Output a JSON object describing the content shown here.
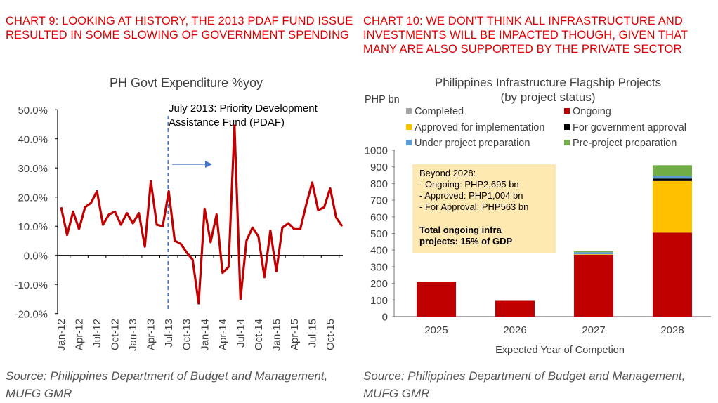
{
  "left": {
    "heading": "CHART 9: LOOKING AT HISTORY, THE 2013 PDAF FUND ISSUE RESULTED IN SOME SLOWING OF GOVERNMENT SPENDING",
    "source": "Source: Philippines Department of Budget and Management, MUFG GMR"
  },
  "right": {
    "heading": "CHART 10: WE DON’T THINK ALL INFRASTRUCTURE AND INVESTMENTS WILL BE IMPACTED THOUGH, GIVEN THAT MANY ARE ALSO SUPPORTED BY THE PRIVATE SECTOR",
    "source": "Source: Philippines Department of Budget and Management, MUFG GMR"
  },
  "chart_data": [
    {
      "type": "line",
      "title": "PH Govt Expenditure %yoy",
      "ylim": [
        -20,
        50
      ],
      "yticks": [
        "50.0%",
        "40.0%",
        "30.0%",
        "20.0%",
        "10.0%",
        "0.0%",
        "-10.0%",
        "-20.0%"
      ],
      "ytick_values": [
        50,
        40,
        30,
        20,
        10,
        0,
        -10,
        -20
      ],
      "xtick_labels": [
        "Jan-12",
        "Apr-12",
        "Jul-12",
        "Oct-12",
        "Jan-13",
        "Apr-13",
        "Jul-13",
        "Oct-13",
        "Jan-14",
        "Apr-14",
        "Jul-14",
        "Oct-14",
        "Jan-15",
        "Apr-15",
        "Jul-15",
        "Oct-15"
      ],
      "annotation": [
        "July 2013: Priority Development",
        "Assistance Fund (PDAF)"
      ],
      "event_index": 18,
      "series": [
        {
          "name": "PH Govt Expenditure %yoy",
          "color": "#c00000",
          "values": [
            16.5,
            7,
            15,
            9,
            16.5,
            18,
            22,
            10.5,
            14,
            15,
            10.5,
            14.5,
            11,
            14.5,
            3,
            25.5,
            10.5,
            10,
            22,
            5,
            4,
            1,
            -1.5,
            -16.5,
            16,
            4.5,
            14,
            -6,
            -4,
            44.5,
            -15,
            5,
            9.5,
            6.5,
            -7.5,
            8.5,
            -5.5,
            9.5,
            11,
            9,
            9,
            17.5,
            25,
            15.5,
            16.5,
            23,
            13,
            10
          ]
        }
      ]
    },
    {
      "type": "bar",
      "stacked": true,
      "title": "Philippines Infrastructure Flagship Projects",
      "subtitle": "(by project status)",
      "ylabel": "PHP bn",
      "xlabel": "Expected Year of Competion",
      "ylim": [
        0,
        1000
      ],
      "yticks": [
        0,
        100,
        200,
        300,
        400,
        500,
        600,
        700,
        800,
        900,
        1000
      ],
      "categories": [
        "2025",
        "2026",
        "2027",
        "2028"
      ],
      "series": [
        {
          "name": "Ongoing",
          "color": "#c00000",
          "values": [
            210,
            95,
            372,
            505
          ]
        },
        {
          "name": "Completed",
          "color": "#a5a5a5",
          "values": [
            0,
            0,
            0,
            0
          ]
        },
        {
          "name": "Approved for implementation",
          "color": "#ffc000",
          "values": [
            0,
            0,
            3,
            310
          ]
        },
        {
          "name": "For government approval",
          "color": "#000000",
          "values": [
            0,
            0,
            0,
            15
          ]
        },
        {
          "name": "Under project preparation",
          "color": "#5b9bd5",
          "values": [
            0,
            0,
            12,
            15
          ]
        },
        {
          "name": "Pre-project preparation",
          "color": "#70ad47",
          "values": [
            0,
            0,
            6,
            65
          ]
        }
      ],
      "legend_order": [
        "Completed",
        "Ongoing",
        "Approved for implementation",
        "For government approval",
        "Under project preparation",
        "Pre-project preparation"
      ],
      "annotation_lines": [
        "Beyond 2028:",
        "- Ongoing: PHP2,695 bn",
        "- Approved: PHP1,004 bn",
        "- For Approval: PHP563 bn"
      ],
      "annotation_bold": [
        "Total ongoing infra",
        "projects: 15% of GDP"
      ]
    }
  ]
}
